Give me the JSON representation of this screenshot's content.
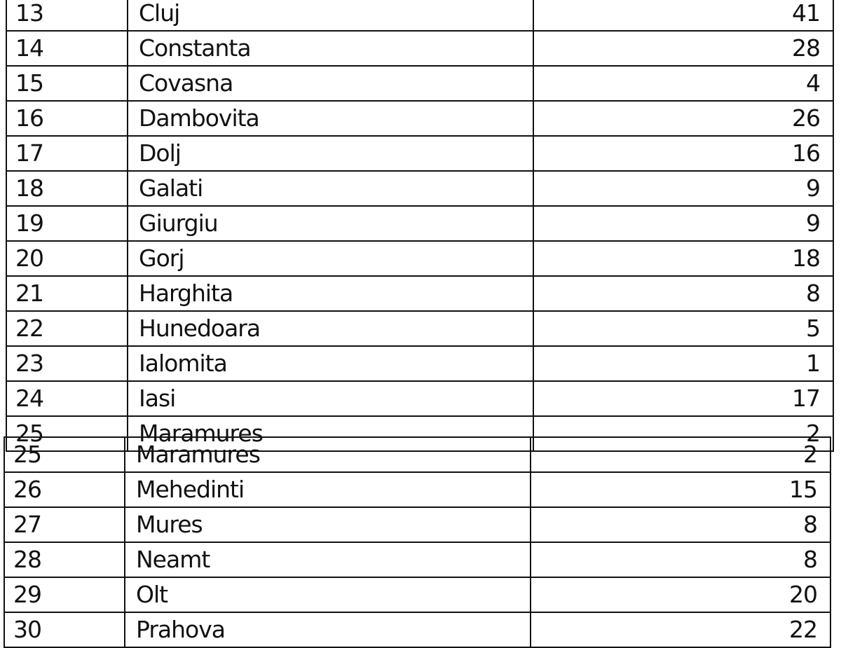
{
  "table_top": [
    {
      "no": "13",
      "county": "Cluj",
      "value": "41"
    },
    {
      "no": "14",
      "county": "Constanta",
      "value": "28"
    },
    {
      "no": "15",
      "county": "Covasna",
      "value": "4"
    },
    {
      "no": "16",
      "county": "Dambovita",
      "value": "26"
    },
    {
      "no": "17",
      "county": "Dolj",
      "value": "16"
    },
    {
      "no": "18",
      "county": "Galati",
      "value": "9"
    },
    {
      "no": "19",
      "county": "Giurgiu",
      "value": "9"
    },
    {
      "no": "20",
      "county": "Gorj",
      "value": "18"
    },
    {
      "no": "21",
      "county": "Harghita",
      "value": "8"
    },
    {
      "no": "22",
      "county": "Hunedoara",
      "value": "5"
    },
    {
      "no": "23",
      "county": "Ialomita",
      "value": "1"
    },
    {
      "no": "24",
      "county": "Iasi",
      "value": "17"
    },
    {
      "no": "25",
      "county": "Maramures",
      "value": "2"
    }
  ],
  "table_bottom": [
    {
      "no": "25",
      "county": "Maramures",
      "value": "2"
    },
    {
      "no": "26",
      "county": "Mehedinti",
      "value": "15"
    },
    {
      "no": "27",
      "county": "Mures",
      "value": "8"
    },
    {
      "no": "28",
      "county": "Neamt",
      "value": "8"
    },
    {
      "no": "29",
      "county": "Olt",
      "value": "20"
    },
    {
      "no": "30",
      "county": "Prahova",
      "value": "22"
    }
  ]
}
